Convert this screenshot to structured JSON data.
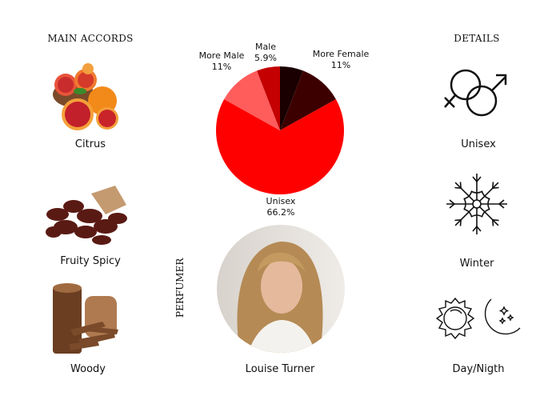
{
  "left": {
    "heading": "MAIN ACCORDS",
    "accords": [
      {
        "label": "Citrus",
        "image": "blood-orange-citrus-photo"
      },
      {
        "label": "Fruity Spicy",
        "image": "dried-dates-spice-photo"
      },
      {
        "label": "Woody",
        "image": "wood-chips-photo"
      }
    ]
  },
  "right": {
    "heading": "DETAILS",
    "details": [
      {
        "label": "Unisex",
        "icon": "gender-symbols-icon"
      },
      {
        "label": "Winter",
        "icon": "snowflake-icon"
      },
      {
        "label": "Day/Nigth",
        "icon": "sun-moon-icon"
      }
    ]
  },
  "perfumer": {
    "heading": "PERFUMER",
    "name": "Louise Turner",
    "image": "perfumer-portrait-photo"
  },
  "chart_data": {
    "type": "pie",
    "start": "top",
    "direction": "clockwise",
    "slices": [
      {
        "label": "",
        "value_label": "",
        "value": 5.9,
        "color": "#1a0000"
      },
      {
        "label": "More Female",
        "value_label": "11%",
        "value": 11,
        "color": "#3d0000"
      },
      {
        "label": "Unisex",
        "value_label": "66.2%",
        "value": 66.2,
        "color": "#ff0000"
      },
      {
        "label": "More Male",
        "value_label": "11%",
        "value": 11,
        "color": "#ff5c5c"
      },
      {
        "label": "Male",
        "value_label": "5.9%",
        "value": 5.9,
        "color": "#c40000"
      }
    ]
  }
}
